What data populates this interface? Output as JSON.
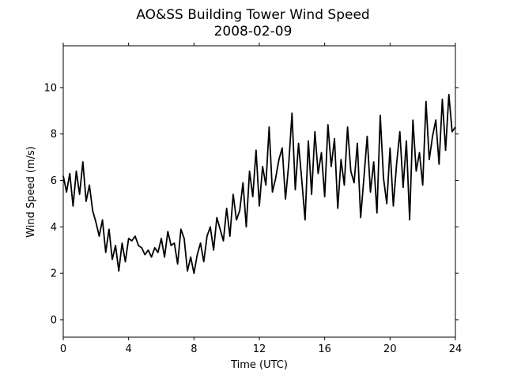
{
  "chart_data": {
    "type": "line",
    "title": "AO&SS Building Tower Wind Speed",
    "subtitle": "2008-02-09",
    "xlabel": "Time (UTC)",
    "ylabel": "Wind Speed (m/s)",
    "xlim": [
      0,
      24
    ],
    "ylim": [
      -0.75,
      11.8
    ],
    "xticks": [
      0,
      4,
      8,
      12,
      16,
      20,
      24
    ],
    "yticks": [
      0,
      2,
      4,
      6,
      8,
      10
    ],
    "grid": false,
    "series": [
      {
        "color": "#000000",
        "x": [
          0.0,
          0.2,
          0.4,
          0.6,
          0.8,
          1.0,
          1.2,
          1.4,
          1.6,
          1.8,
          2.0,
          2.2,
          2.4,
          2.6,
          2.8,
          3.0,
          3.2,
          3.4,
          3.6,
          3.8,
          4.0,
          4.2,
          4.4,
          4.6,
          4.8,
          5.0,
          5.2,
          5.4,
          5.6,
          5.8,
          6.0,
          6.2,
          6.4,
          6.6,
          6.8,
          7.0,
          7.2,
          7.4,
          7.6,
          7.8,
          8.0,
          8.2,
          8.4,
          8.6,
          8.8,
          9.0,
          9.2,
          9.4,
          9.6,
          9.8,
          10.0,
          10.2,
          10.4,
          10.6,
          10.8,
          11.0,
          11.2,
          11.4,
          11.6,
          11.8,
          12.0,
          12.2,
          12.4,
          12.6,
          12.8,
          13.0,
          13.2,
          13.4,
          13.6,
          13.8,
          14.0,
          14.2,
          14.4,
          14.6,
          14.8,
          15.0,
          15.2,
          15.4,
          15.6,
          15.8,
          16.0,
          16.2,
          16.4,
          16.6,
          16.8,
          17.0,
          17.2,
          17.4,
          17.6,
          17.8,
          18.0,
          18.2,
          18.4,
          18.6,
          18.8,
          19.0,
          19.2,
          19.4,
          19.6,
          19.8,
          20.0,
          20.2,
          20.4,
          20.6,
          20.8,
          21.0,
          21.2,
          21.4,
          21.6,
          21.8,
          22.0,
          22.2,
          22.4,
          22.6,
          22.8,
          23.0,
          23.2,
          23.4,
          23.6,
          23.8,
          24.0
        ],
        "y": [
          6.2,
          5.5,
          6.3,
          4.9,
          6.4,
          5.4,
          6.8,
          5.1,
          5.8,
          4.7,
          4.2,
          3.6,
          4.3,
          2.9,
          3.9,
          2.6,
          3.2,
          2.1,
          3.3,
          2.5,
          3.5,
          3.4,
          3.6,
          3.2,
          3.1,
          2.8,
          3.0,
          2.7,
          3.1,
          2.9,
          3.5,
          2.7,
          3.8,
          3.2,
          3.3,
          2.4,
          3.9,
          3.5,
          2.1,
          2.7,
          2.0,
          2.8,
          3.3,
          2.5,
          3.6,
          4.0,
          3.0,
          4.4,
          3.9,
          3.4,
          4.8,
          3.6,
          5.4,
          4.3,
          4.7,
          5.9,
          4.0,
          6.4,
          5.3,
          7.3,
          4.9,
          6.6,
          5.8,
          8.3,
          5.5,
          6.1,
          6.9,
          7.4,
          5.2,
          6.7,
          8.9,
          5.6,
          7.6,
          6.0,
          4.3,
          7.7,
          5.4,
          8.1,
          6.3,
          7.2,
          5.3,
          8.4,
          6.6,
          7.8,
          4.8,
          6.9,
          5.8,
          8.3,
          6.4,
          5.9,
          7.6,
          4.4,
          6.1,
          7.9,
          5.5,
          6.8,
          4.6,
          8.8,
          6.1,
          5.0,
          7.4,
          4.9,
          6.7,
          8.1,
          5.7,
          7.7,
          4.3,
          8.6,
          6.4,
          7.2,
          5.8,
          9.4,
          6.9,
          7.9,
          8.6,
          6.7,
          9.5,
          7.3,
          9.7,
          8.1,
          8.3
        ]
      }
    ]
  }
}
